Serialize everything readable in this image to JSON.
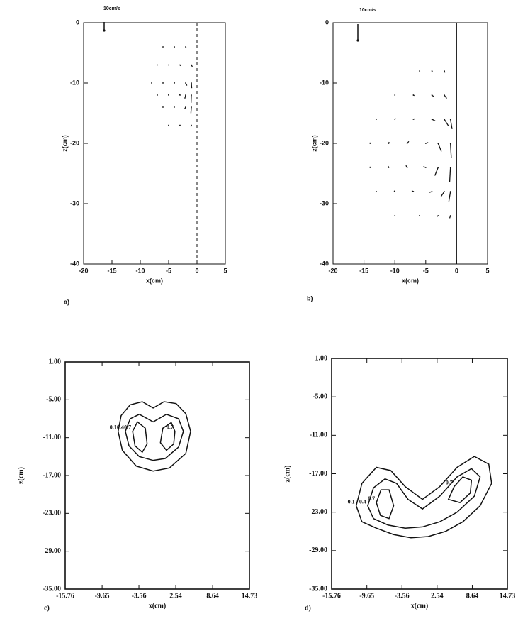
{
  "chart_data": [
    {
      "type": "quiver",
      "panel_label": "a)",
      "x_label": "x(cm)",
      "y_label": "z(cm)",
      "reference_arrow": {
        "label": "10cm/s",
        "value": 10
      },
      "centerline_x": 0,
      "xlim": [
        -20,
        5
      ],
      "xticks": [
        -20,
        -15,
        -10,
        -5,
        0,
        5
      ],
      "ylim": [
        -40,
        0
      ],
      "yticks": [
        0,
        -10,
        -20,
        -30,
        -40
      ],
      "vectors": {
        "x": [
          -6,
          -4,
          -2,
          -7,
          -5,
          -3,
          -1,
          -8,
          -6,
          -4,
          -2,
          -1,
          -7,
          -5,
          -3,
          -2,
          -1,
          -6,
          -4,
          -2,
          -1,
          -5,
          -3,
          -1
        ],
        "z": [
          -4,
          -4,
          -4,
          -7,
          -7,
          -7,
          -7,
          -10,
          -10,
          -10,
          -10,
          -10,
          -12,
          -12,
          -12,
          -12,
          -12,
          -14,
          -14,
          -14,
          -14,
          -17,
          -17,
          -17
        ],
        "u": [
          0.3,
          0.5,
          0.6,
          0.3,
          0.6,
          1,
          1.2,
          0,
          0.3,
          0.6,
          1.5,
          0.5,
          -0.3,
          -0.3,
          -0.5,
          -1,
          -0.3,
          -0.4,
          -0.6,
          -1.2,
          -0.5,
          -0.3,
          -0.4,
          -0.5
        ],
        "w": [
          -0.3,
          -0.5,
          -0.8,
          0,
          -0.4,
          -1,
          -2,
          0.5,
          0.6,
          0.5,
          -3,
          -6,
          0.6,
          0.8,
          1.5,
          -4,
          -9,
          0.3,
          0.4,
          -2,
          -7,
          -0.2,
          -0.5,
          -1.5
        ]
      }
    },
    {
      "type": "quiver",
      "panel_label": "b)",
      "x_label": "x(cm)",
      "y_label": "z(cm)",
      "reference_arrow": {
        "label": "10cm/s",
        "value": 10
      },
      "centerline_x": 0,
      "xlim": [
        -20,
        5
      ],
      "xticks": [
        -20,
        -15,
        -10,
        -5,
        0,
        5
      ],
      "ylim": [
        -40,
        0
      ],
      "yticks": [
        0,
        -10,
        -20,
        -30,
        -40
      ],
      "vectors": {
        "x": [
          -6,
          -4,
          -2,
          -10,
          -7,
          -4,
          -2,
          -13,
          -10,
          -7,
          -4,
          -2,
          -1,
          -14,
          -11,
          -8,
          -5,
          -3,
          -1,
          -14,
          -11,
          -8,
          -5,
          -3,
          -1,
          -13,
          -10,
          -7,
          -4,
          -2,
          -1,
          -10,
          -6,
          -3,
          -1
        ],
        "z": [
          -8,
          -8,
          -8,
          -12,
          -12,
          -12,
          -12,
          -16,
          -16,
          -16,
          -16,
          -16,
          -16,
          -20,
          -20,
          -20,
          -20,
          -20,
          -20,
          -24,
          -24,
          -24,
          -24,
          -24,
          -24,
          -28,
          -28,
          -28,
          -28,
          -28,
          -28,
          -32,
          -32,
          -32,
          -32
        ],
        "u": [
          0.2,
          0.3,
          0.4,
          0.3,
          0.6,
          1,
          1.5,
          0.2,
          0.5,
          1,
          2,
          2.5,
          1,
          0,
          0.3,
          1,
          1.5,
          2,
          0.5,
          0,
          -0.3,
          -0.8,
          -1.5,
          -2,
          -0.5,
          -0.2,
          -0.5,
          -1,
          -1.5,
          -2,
          -1,
          -0.2,
          -0.4,
          -0.6,
          -0.5
        ],
        "w": [
          -0.3,
          -0.5,
          -1,
          0,
          -0.3,
          -0.8,
          -2,
          0.3,
          0.5,
          0.3,
          -1,
          -4,
          -6,
          0.5,
          0.8,
          1.2,
          0.5,
          -5,
          -9,
          0.5,
          0.8,
          1.2,
          0.5,
          -5,
          -9,
          0.3,
          0.5,
          0.6,
          -0.5,
          -3,
          -6,
          0,
          0,
          -0.5,
          -1.5
        ]
      }
    },
    {
      "type": "contour",
      "panel_label": "c)",
      "x_label": "x(cm)",
      "y_label": "z(cm)",
      "xlim": [
        -15.76,
        14.73
      ],
      "xticks": [
        -15.76,
        -9.65,
        -3.56,
        2.54,
        8.64,
        14.73
      ],
      "ylim": [
        -35,
        1
      ],
      "yticks": [
        {
          "value": 1,
          "label": "1.00"
        },
        {
          "value": -5,
          "label": "-5.00"
        },
        {
          "value": -11,
          "label": "-11.00"
        },
        {
          "value": -17,
          "label": "-17.00"
        },
        {
          "value": -23,
          "label": "-23.00"
        },
        {
          "value": -29,
          "label": "-29.00"
        },
        {
          "value": -35,
          "label": "-35.00"
        }
      ],
      "contours": [
        {
          "level": 0.1,
          "x": [
            -7,
            -6.5,
            -5,
            -3,
            -1.2,
            0.6,
            2.6,
            4.2,
            5,
            4.2,
            1.5,
            -1.2,
            -4,
            -6.3
          ],
          "y": [
            -10,
            -7.5,
            -5.8,
            -5.3,
            -6.3,
            -5.3,
            -5.6,
            -7.2,
            -10,
            -13.5,
            -15.8,
            -16.3,
            -15.5,
            -13
          ]
        },
        {
          "level": 0.4,
          "x": [
            -5.8,
            -5,
            -3.5,
            -1.2,
            1,
            3,
            3.8,
            3,
            0.8,
            -1.2,
            -3.5,
            -5.2
          ],
          "y": [
            -10,
            -8,
            -7.3,
            -8.5,
            -7.3,
            -8,
            -10,
            -12.5,
            -14.3,
            -14.6,
            -14,
            -12.3
          ]
        },
        {
          "level": 0.7,
          "x": [
            -4.6,
            -3.8,
            -2.5,
            -2.2,
            -3,
            -4.2
          ],
          "y": [
            -10,
            -8.5,
            -9.5,
            -12,
            -13.3,
            -12.3
          ]
        },
        {
          "level": 0.7,
          "x": [
            2.4,
            1.8,
            0.4,
            0,
            1,
            2.2
          ],
          "y": [
            -10,
            -8.6,
            -9.5,
            -11.8,
            -13,
            -12
          ]
        }
      ]
    },
    {
      "type": "contour",
      "panel_label": "d)",
      "x_label": "x(cm)",
      "y_label": "z(cm)",
      "xlim": [
        -15.76,
        14.73
      ],
      "xticks": [
        -15.76,
        -9.65,
        -3.56,
        2.54,
        8.64,
        14.73
      ],
      "ylim": [
        -35,
        1
      ],
      "yticks": [
        {
          "value": 1,
          "label": "1.00"
        },
        {
          "value": -5,
          "label": "-5.00"
        },
        {
          "value": -11,
          "label": "-11.00"
        },
        {
          "value": -17,
          "label": "-17.00"
        },
        {
          "value": -23,
          "label": "-23.00"
        },
        {
          "value": -29,
          "label": "-29.00"
        },
        {
          "value": -35,
          "label": "-35.00"
        }
      ],
      "contours": [
        {
          "level": 0.1,
          "x": [
            -11.5,
            -10.5,
            -8,
            -5.5,
            -3,
            0,
            3,
            6,
            9,
            11.5,
            12,
            10,
            7,
            4,
            1,
            -2,
            -5,
            -8,
            -10.5
          ],
          "y": [
            -22,
            -18.5,
            -16,
            -16.5,
            -19,
            -21,
            -19,
            -16,
            -14.3,
            -15.5,
            -18.5,
            -22,
            -24.5,
            -26,
            -26.8,
            -27,
            -26.5,
            -25.5,
            -24.5
          ]
        },
        {
          "level": 0.4,
          "x": [
            -9.5,
            -8.5,
            -6.5,
            -4.5,
            -2.5,
            0,
            3,
            6,
            8.5,
            10,
            9,
            6,
            3,
            0,
            -3,
            -6,
            -8.5
          ],
          "y": [
            -22,
            -19.2,
            -17.8,
            -18.5,
            -21,
            -22.5,
            -20.5,
            -17.5,
            -16.2,
            -17.5,
            -20.5,
            -23,
            -24.5,
            -25.3,
            -25.5,
            -25,
            -24
          ]
        },
        {
          "level": 0.7,
          "x": [
            -8,
            -7.2,
            -5.8,
            -5,
            -5.8,
            -7.3
          ],
          "y": [
            -21.5,
            -19.5,
            -19.5,
            -22,
            -24,
            -23.5
          ]
        },
        {
          "level": 0.7,
          "x": [
            5.5,
            7,
            8.5,
            8.3,
            6.5,
            4.5
          ],
          "y": [
            -19,
            -17.5,
            -18,
            -20,
            -21.5,
            -21
          ]
        }
      ]
    }
  ]
}
